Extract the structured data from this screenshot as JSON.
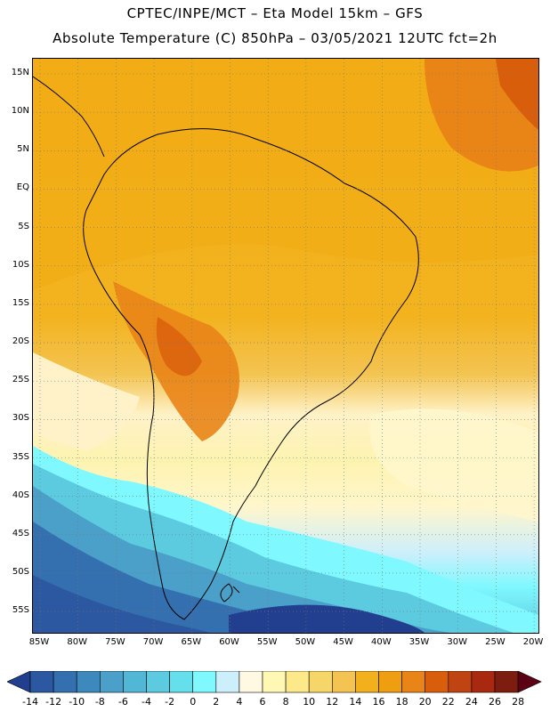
{
  "header": {
    "line1": "CPTEC/INPE/MCT –  Eta Model 15km – GFS",
    "line2": "Absolute Temperature (C) 850hPa – 03/05/2021 12UTC fct=2h"
  },
  "map": {
    "lat_labels": [
      "15N",
      "10N",
      "5N",
      "EQ",
      "5S",
      "10S",
      "15S",
      "20S",
      "25S",
      "30S",
      "35S",
      "40S",
      "45S",
      "50S",
      "55S"
    ],
    "lon_labels": [
      "85W",
      "80W",
      "75W",
      "70W",
      "65W",
      "60W",
      "55W",
      "50W",
      "45W",
      "40W",
      "35W",
      "30W",
      "25W",
      "20W"
    ],
    "field": "Absolute Temperature",
    "units": "C",
    "level": "850hPa"
  },
  "colorbar": {
    "levels": [
      "-14",
      "-12",
      "-10",
      "-8",
      "-6",
      "-4",
      "-2",
      "0",
      "2",
      "4",
      "6",
      "8",
      "10",
      "12",
      "14",
      "16",
      "18",
      "20",
      "22",
      "24",
      "26",
      "28"
    ],
    "colors": [
      "#223f8f",
      "#2b58a0",
      "#3470b0",
      "#3d88bd",
      "#4aa0c8",
      "#52b6d6",
      "#5ccbe0",
      "#66dfec",
      "#7ff8ff",
      "#cdeffb",
      "#fff8e2",
      "#fff7b4",
      "#fde88a",
      "#f6d668",
      "#f3c452",
      "#f1b01c",
      "#ef9d11",
      "#e98417",
      "#d95e0b",
      "#c04411",
      "#a8290f",
      "#7d1d10",
      "#5c0014"
    ]
  }
}
